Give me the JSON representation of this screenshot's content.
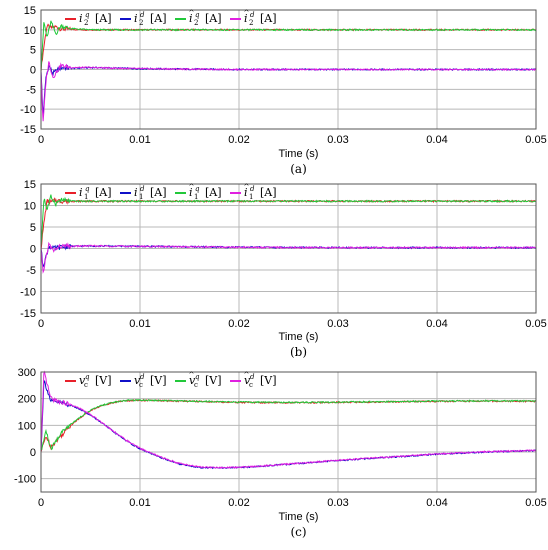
{
  "chart_data": [
    {
      "type": "line",
      "caption": "(a)",
      "xlabel": "Time (s)",
      "xlim": [
        0,
        0.05
      ],
      "ylim": [
        -15,
        15
      ],
      "x_ticks": [
        0,
        0.01,
        0.02,
        0.03,
        0.04,
        0.05
      ],
      "x_tick_labels": [
        "0",
        "0.01",
        "0.02",
        "0.03",
        "0.04",
        "0.05"
      ],
      "y_ticks": [
        -15,
        -10,
        -5,
        0,
        5,
        10,
        15
      ],
      "y_tick_labels": [
        "-15",
        "-10",
        "-5",
        "0",
        "5",
        "10",
        "15"
      ],
      "grid": true,
      "legend_position": "top-left",
      "series": [
        {
          "name": "i",
          "sup": "q",
          "sub": "2",
          "hat": false,
          "unit": "[A]",
          "color": "#e8202a",
          "x": [
            0,
            0.0003,
            0.0006,
            0.001,
            0.0015,
            0.002,
            0.003,
            0.005,
            0.01,
            0.02,
            0.03,
            0.04,
            0.05
          ],
          "values": [
            0,
            6,
            11,
            10.5,
            10.8,
            10.2,
            10.1,
            10,
            10,
            10,
            10,
            10,
            10
          ]
        },
        {
          "name": "i",
          "sup": "d",
          "sub": "2",
          "hat": false,
          "unit": "[A]",
          "color": "#1010c8",
          "x": [
            0,
            0.0002,
            0.0005,
            0.0008,
            0.0012,
            0.002,
            0.003,
            0.005,
            0.01,
            0.02,
            0.03,
            0.04,
            0.05
          ],
          "values": [
            0,
            -12,
            -2,
            1,
            -1,
            0.5,
            0.3,
            0.5,
            0.2,
            0,
            0,
            0,
            0
          ]
        },
        {
          "name": "i",
          "sup": "q",
          "sub": "2",
          "hat": true,
          "unit": "[A]",
          "color": "#22c83a",
          "x": [
            0,
            0.0003,
            0.0006,
            0.001,
            0.0015,
            0.002,
            0.003,
            0.005,
            0.01,
            0.02,
            0.03,
            0.04,
            0.05
          ],
          "values": [
            0,
            12,
            8,
            12,
            9,
            11,
            10.3,
            10,
            10,
            10,
            10,
            10,
            10
          ]
        },
        {
          "name": "i",
          "sup": "d",
          "sub": "2",
          "hat": true,
          "unit": "[A]",
          "color": "#e020e0",
          "x": [
            0,
            0.0002,
            0.0005,
            0.0008,
            0.0012,
            0.002,
            0.003,
            0.005,
            0.01,
            0.02,
            0.03,
            0.04,
            0.05
          ],
          "values": [
            0,
            -14,
            -3,
            2,
            -2,
            1,
            0.5,
            0.5,
            0.2,
            0,
            0,
            0,
            0
          ]
        }
      ]
    },
    {
      "type": "line",
      "caption": "(b)",
      "xlabel": "Time (s)",
      "xlim": [
        0,
        0.05
      ],
      "ylim": [
        -15,
        15
      ],
      "x_ticks": [
        0,
        0.01,
        0.02,
        0.03,
        0.04,
        0.05
      ],
      "x_tick_labels": [
        "0",
        "0.01",
        "0.02",
        "0.03",
        "0.04",
        "0.05"
      ],
      "y_ticks": [
        -15,
        -10,
        -5,
        0,
        5,
        10,
        15
      ],
      "y_tick_labels": [
        "-15",
        "-10",
        "-5",
        "0",
        "5",
        "10",
        "15"
      ],
      "grid": true,
      "legend_position": "top-left",
      "series": [
        {
          "name": "i",
          "sup": "q",
          "sub": "1",
          "hat": false,
          "unit": "[A]",
          "color": "#e8202a",
          "x": [
            0,
            0.0003,
            0.0006,
            0.001,
            0.0015,
            0.002,
            0.003,
            0.005,
            0.01,
            0.02,
            0.03,
            0.04,
            0.05
          ],
          "values": [
            0,
            6,
            11,
            10.8,
            11.2,
            11,
            11,
            11,
            11,
            11,
            11,
            11,
            11
          ]
        },
        {
          "name": "i",
          "sup": "d",
          "sub": "1",
          "hat": false,
          "unit": "[A]",
          "color": "#1010c8",
          "x": [
            0,
            0.0002,
            0.0005,
            0.0008,
            0.0012,
            0.002,
            0.003,
            0.005,
            0.01,
            0.02,
            0.03,
            0.04,
            0.05
          ],
          "values": [
            0,
            -4,
            -2,
            0.5,
            0,
            0.3,
            0.5,
            0.6,
            0.5,
            0.3,
            0.2,
            0.2,
            0.2
          ]
        },
        {
          "name": "i",
          "sup": "q",
          "sub": "1",
          "hat": true,
          "unit": "[A]",
          "color": "#22c83a",
          "x": [
            0,
            0.0003,
            0.0006,
            0.001,
            0.0015,
            0.002,
            0.003,
            0.005,
            0.01,
            0.02,
            0.03,
            0.04,
            0.05
          ],
          "values": [
            0,
            12,
            9,
            12,
            10.5,
            11.3,
            11,
            11,
            11,
            11,
            11,
            11,
            11
          ]
        },
        {
          "name": "i",
          "sup": "d",
          "sub": "1",
          "hat": true,
          "unit": "[A]",
          "color": "#e020e0",
          "x": [
            0,
            0.0002,
            0.0005,
            0.0008,
            0.0012,
            0.002,
            0.003,
            0.005,
            0.01,
            0.02,
            0.03,
            0.04,
            0.05
          ],
          "values": [
            0,
            -6,
            -2,
            1,
            -0.5,
            0.5,
            0.5,
            0.6,
            0.5,
            0.3,
            0.2,
            0.2,
            0.2
          ]
        }
      ]
    },
    {
      "type": "line",
      "caption": "(c)",
      "xlabel": "Time (s)",
      "xlim": [
        0,
        0.05
      ],
      "ylim": [
        -150,
        300
      ],
      "x_ticks": [
        0,
        0.01,
        0.02,
        0.03,
        0.04,
        0.05
      ],
      "x_tick_labels": [
        "0",
        "0.01",
        "0.02",
        "0.03",
        "0.04",
        "0.05"
      ],
      "y_ticks": [
        -100,
        0,
        100,
        200,
        300
      ],
      "y_tick_labels": [
        "-100",
        "0",
        "100",
        "200",
        "300"
      ],
      "grid": true,
      "legend_position": "top-left",
      "series": [
        {
          "name": "v",
          "sup": "q",
          "sub": "c",
          "hat": false,
          "unit": "[V]",
          "color": "#e8202a",
          "x": [
            0,
            0.0005,
            0.001,
            0.002,
            0.003,
            0.004,
            0.005,
            0.006,
            0.007,
            0.008,
            0.009,
            0.01,
            0.015,
            0.02,
            0.025,
            0.03,
            0.035,
            0.04,
            0.045,
            0.05
          ],
          "values": [
            0,
            60,
            20,
            60,
            100,
            130,
            155,
            172,
            183,
            190,
            193,
            194,
            190,
            186,
            185,
            186,
            188,
            190,
            191,
            190
          ]
        },
        {
          "name": "v",
          "sup": "d",
          "sub": "c",
          "hat": false,
          "unit": "[V]",
          "color": "#1010c8",
          "x": [
            0,
            0.0003,
            0.001,
            0.002,
            0.003,
            0.004,
            0.005,
            0.006,
            0.007,
            0.008,
            0.009,
            0.01,
            0.012,
            0.014,
            0.016,
            0.018,
            0.02,
            0.022,
            0.025,
            0.03,
            0.035,
            0.04,
            0.045,
            0.05
          ],
          "values": [
            0,
            270,
            190,
            185,
            175,
            160,
            138,
            113,
            85,
            58,
            33,
            12,
            -20,
            -45,
            -58,
            -60,
            -58,
            -54,
            -46,
            -32,
            -20,
            -8,
            0,
            5
          ]
        },
        {
          "name": "v",
          "sup": "q",
          "sub": "c",
          "hat": true,
          "unit": "[V]",
          "color": "#22c83a",
          "x": [
            0,
            0.0005,
            0.001,
            0.002,
            0.003,
            0.004,
            0.005,
            0.006,
            0.007,
            0.008,
            0.009,
            0.01,
            0.015,
            0.02,
            0.025,
            0.03,
            0.035,
            0.04,
            0.045,
            0.05
          ],
          "values": [
            0,
            80,
            10,
            70,
            105,
            132,
            157,
            173,
            184,
            191,
            194,
            195,
            191,
            187,
            186,
            187,
            189,
            191,
            192,
            191
          ]
        },
        {
          "name": "v",
          "sup": "d",
          "sub": "c",
          "hat": true,
          "unit": "[V]",
          "color": "#e020e0",
          "x": [
            0,
            0.0003,
            0.001,
            0.002,
            0.003,
            0.004,
            0.005,
            0.006,
            0.007,
            0.008,
            0.009,
            0.01,
            0.012,
            0.014,
            0.016,
            0.018,
            0.02,
            0.022,
            0.025,
            0.03,
            0.035,
            0.04,
            0.045,
            0.05
          ],
          "values": [
            0,
            300,
            200,
            188,
            177,
            162,
            140,
            115,
            87,
            60,
            35,
            14,
            -18,
            -43,
            -56,
            -59,
            -57,
            -53,
            -45,
            -31,
            -19,
            -7,
            1,
            6
          ]
        }
      ]
    }
  ]
}
